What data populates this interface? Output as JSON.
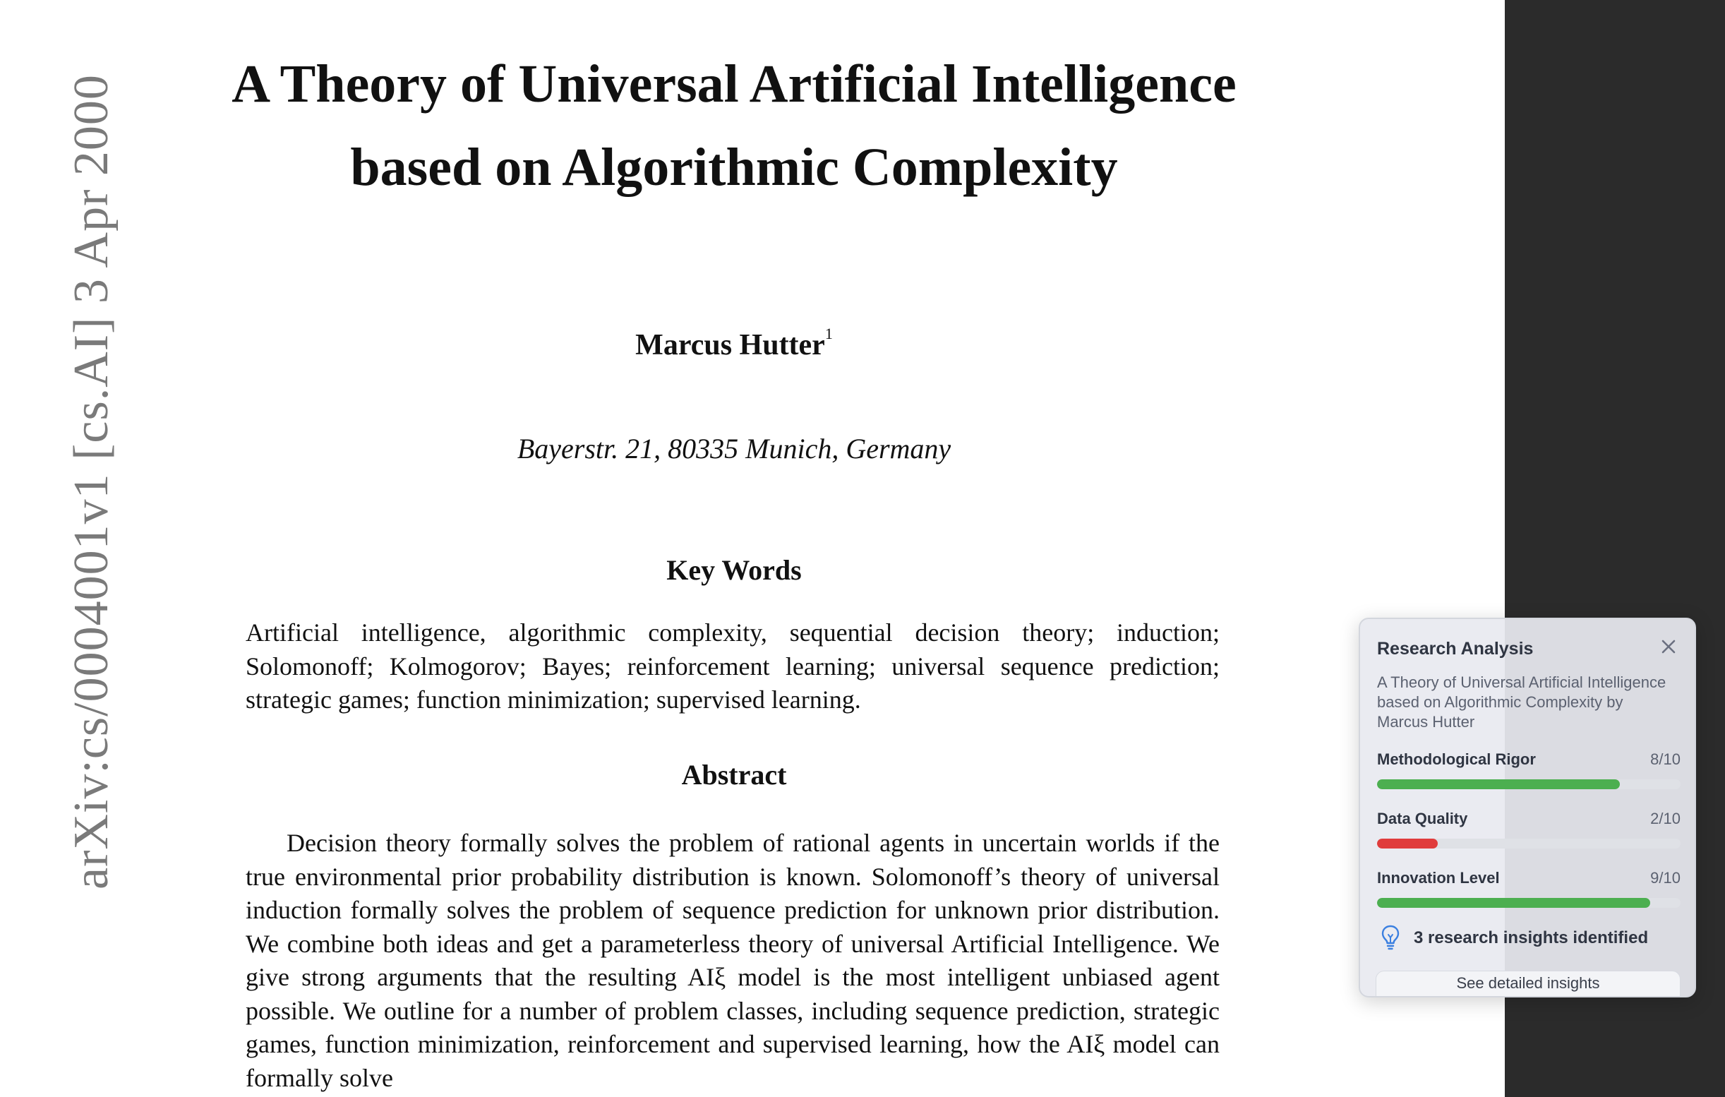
{
  "side_stamp": "arXiv:cs/0004001v1  [cs.AI]  3 Apr 2000",
  "paper": {
    "title_line1": "A Theory of Universal Artificial Intelligence",
    "title_line2": "based on Algorithmic Complexity",
    "author": "Marcus Hutter",
    "author_footnote": "1",
    "address": "Bayerstr. 21, 80335 Munich, Germany",
    "keywords_heading": "Key Words",
    "keywords": "Artificial intelligence, algorithmic complexity, sequential decision theory; induction; Solomonoff; Kolmogorov; Bayes; reinforcement learning; universal sequence prediction; strategic games; function minimization; supervised learning.",
    "abstract_heading": "Abstract",
    "abstract": "Decision theory formally solves the problem of rational agents in uncertain worlds if the true environmental prior probability distribution is known. Solomonoff’s theory of universal induction formally solves the problem of sequence prediction for unknown prior distribution. We combine both ideas and get a parameterless theory of universal Artificial Intelligence. We give strong arguments that the resulting AIξ model is the most intelligent unbiased agent possible. We outline for a number of problem classes, including sequence prediction, strategic games, function minimization, reinforcement and supervised learning, how the AIξ model can formally solve"
  },
  "analysis_panel": {
    "title": "Research Analysis",
    "close_icon": "close-icon",
    "subtitle": "A Theory of Universal Artificial Intelligence based on Algorithmic Complexity by Marcus Hutter",
    "metrics": [
      {
        "label": "Methodological Rigor",
        "score": "8/10",
        "value": 8,
        "max": 10,
        "color": "#4caf50"
      },
      {
        "label": "Data Quality",
        "score": "2/10",
        "value": 2,
        "max": 10,
        "color": "#e03c3c"
      },
      {
        "label": "Innovation Level",
        "score": "9/10",
        "value": 9,
        "max": 10,
        "color": "#4caf50"
      }
    ],
    "insights_icon": "lightbulb-icon",
    "insights_text": "3 research insights identified",
    "insights_button": "See detailed insights"
  }
}
